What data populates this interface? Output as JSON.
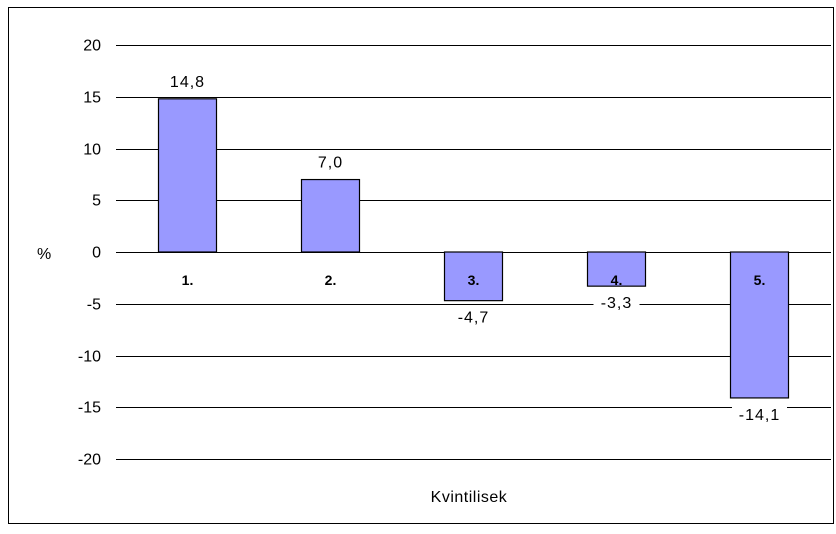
{
  "chart_data": {
    "type": "bar",
    "categories": [
      "1.",
      "2.",
      "3.",
      "4.",
      "5."
    ],
    "values": [
      14.8,
      7.0,
      -4.7,
      -3.3,
      -14.1
    ],
    "data_labels": [
      "14,8",
      "7,0",
      "-4,7",
      "-3,3",
      "-14,1"
    ],
    "title": "",
    "xlabel": "Kvintilisek",
    "ylabel": "%",
    "ylim": [
      -20,
      20
    ],
    "yticks": [
      20,
      15,
      10,
      5,
      0,
      -5,
      -10,
      -15,
      -20
    ],
    "ytick_labels": [
      "20",
      "15",
      "10",
      "5",
      "0",
      "-5",
      "-10",
      "-15",
      "-20"
    ],
    "grid": true,
    "legend": "none",
    "colors": {
      "bar_fill": "#9999ff",
      "bar_stroke": "#000000",
      "grid": "#000000"
    }
  }
}
